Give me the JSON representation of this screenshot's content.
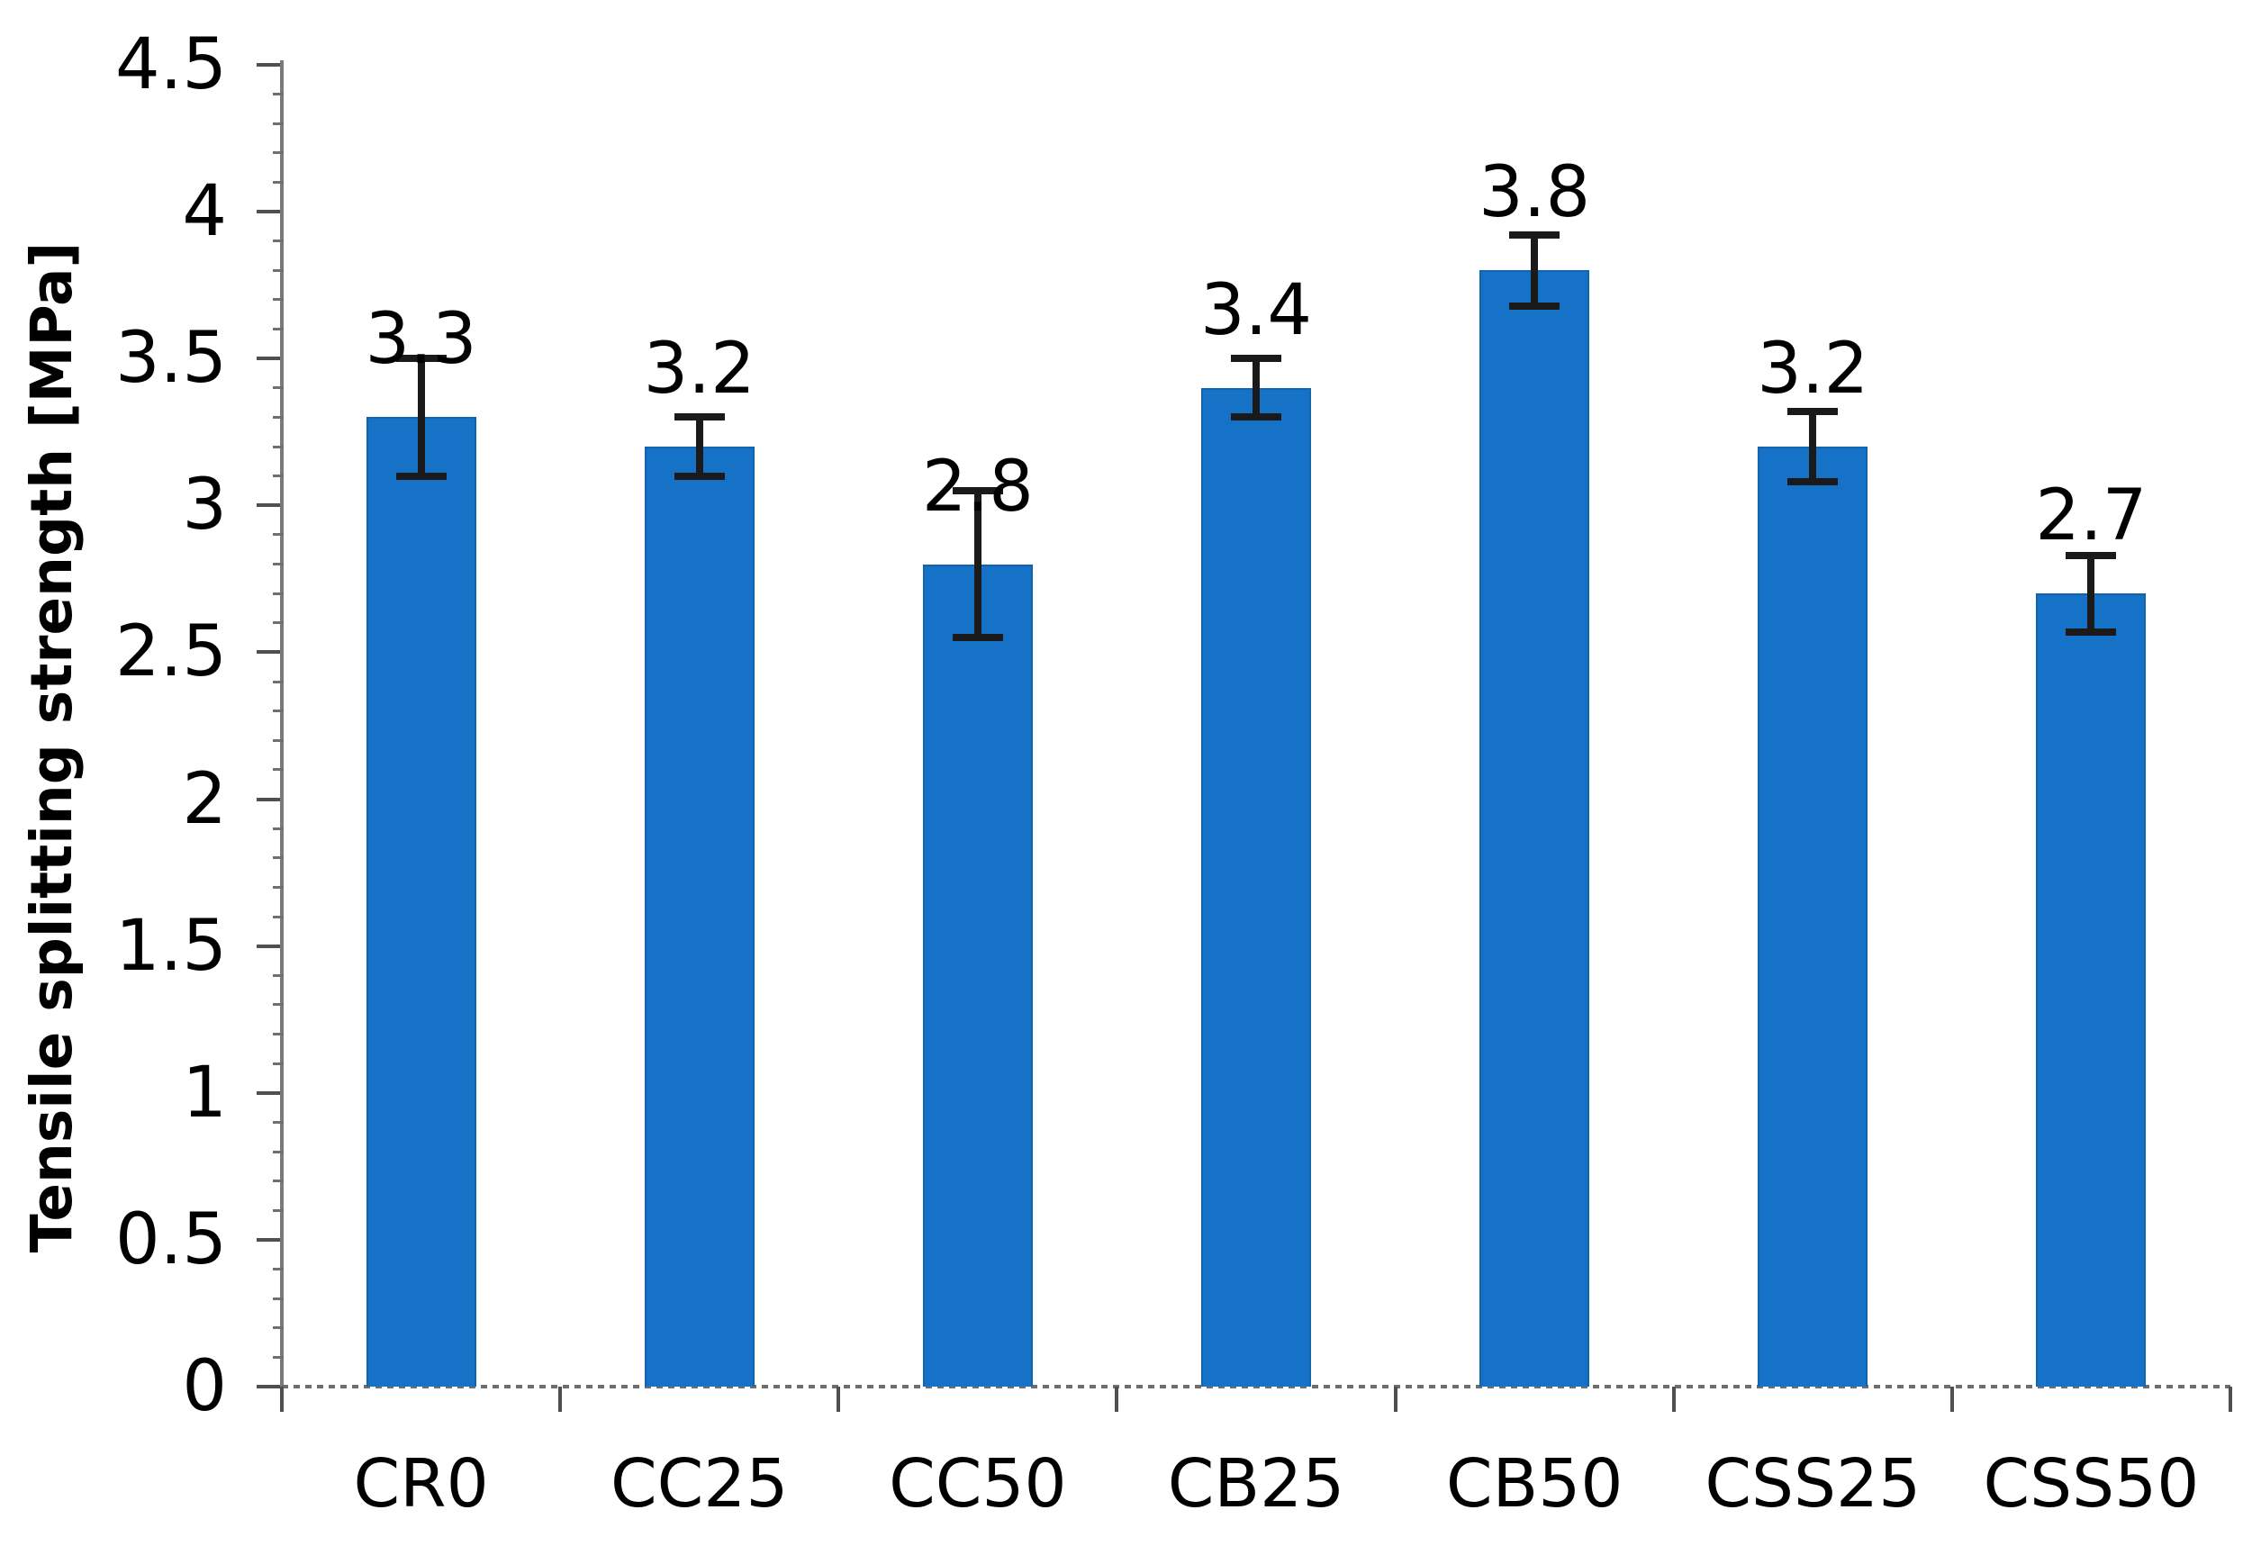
{
  "chart_data": {
    "type": "bar",
    "title": "",
    "ylabel": "Tensile splitting strength [MPa]",
    "xlabel": "",
    "categories": [
      "CR0",
      "CC25",
      "CC50",
      "CB25",
      "CB50",
      "CSS25",
      "CSS50"
    ],
    "values": [
      3.3,
      3.2,
      2.8,
      3.4,
      3.8,
      3.2,
      2.7
    ],
    "errors": [
      0.2,
      0.1,
      0.25,
      0.1,
      0.12,
      0.12,
      0.13
    ],
    "data_labels": [
      "3.3",
      "3.2",
      "2.8",
      "3.4",
      "3.8",
      "3.2",
      "2.7"
    ],
    "ylim": [
      0,
      4.5
    ],
    "ytick_step": 0.5,
    "ytick_labels": [
      "0",
      "0.5",
      "1",
      "1.5",
      "2",
      "2.5",
      "3",
      "3.5",
      "4",
      "4.5"
    ],
    "minor_tick_step": 0.1,
    "grid": false,
    "legend": false,
    "colors": {
      "bar": "#1572C6",
      "bar_border": "#1264AF",
      "error": "#1a1a1a",
      "axis_line": "#7a7a7a",
      "major_tick": "#4f4f4f",
      "minor_tick": "#6f6f6f",
      "baseline": "#6e6e6e",
      "text": "#000000"
    }
  }
}
